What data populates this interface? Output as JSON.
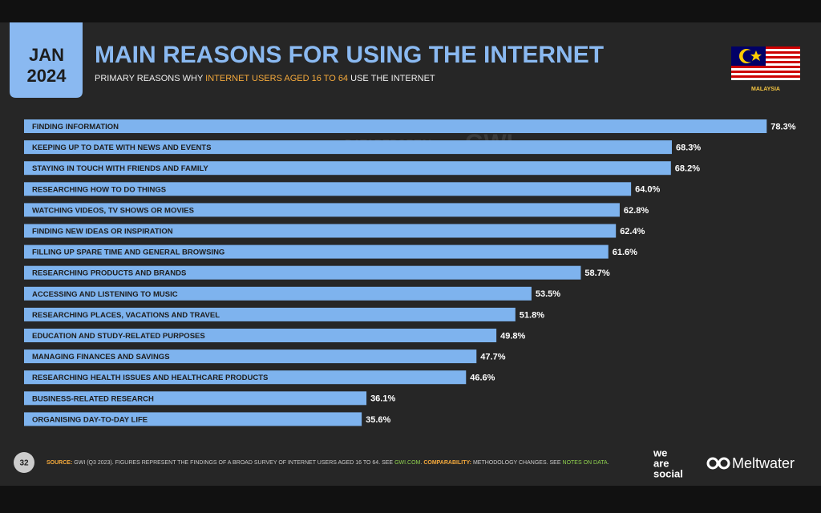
{
  "date": {
    "month": "JAN",
    "year": "2024"
  },
  "chart_data": {
    "type": "hbar",
    "title": "MAIN REASONS FOR USING THE INTERNET",
    "subtitle": {
      "before": "PRIMARY REASONS WHY",
      "highlight": "INTERNET USERS AGED 16 TO 64",
      "after": "USE THE INTERNET"
    },
    "categories": [
      "FINDING INFORMATION",
      "KEEPING UP TO DATE WITH NEWS AND EVENTS",
      "STAYING IN TOUCH WITH FRIENDS AND FAMILY",
      "RESEARCHING HOW TO DO THINGS",
      "WATCHING VIDEOS, TV SHOWS OR MOVIES",
      "FINDING NEW IDEAS OR INSPIRATION",
      "FILLING UP SPARE TIME AND GENERAL BROWSING",
      "RESEARCHING PRODUCTS AND BRANDS",
      "ACCESSING AND LISTENING TO MUSIC",
      "RESEARCHING PLACES, VACATIONS AND TRAVEL",
      "EDUCATION AND STUDY-RELATED PURPOSES",
      "MANAGING FINANCES AND SAVINGS",
      "RESEARCHING HEALTH ISSUES AND HEALTHCARE PRODUCTS",
      "BUSINESS-RELATED RESEARCH",
      "ORGANISING DAY-TO-DAY LIFE"
    ],
    "values": [
      78.3,
      68.3,
      68.2,
      64.0,
      62.8,
      62.4,
      61.6,
      58.7,
      53.5,
      51.8,
      49.8,
      47.7,
      46.6,
      36.1,
      35.6
    ],
    "value_labels": [
      "78.3%",
      "68.3%",
      "68.2%",
      "64.0%",
      "62.8%",
      "62.4%",
      "61.6%",
      "58.7%",
      "53.5%",
      "51.8%",
      "49.8%",
      "47.7%",
      "46.6%",
      "36.1%",
      "35.6%"
    ],
    "color": "#7eb3ee"
  },
  "country": "MALAYSIA",
  "watermark": {
    "left": "DATAREPORTAL",
    "right": "GWI."
  },
  "footer": {
    "page": "32",
    "source": [
      {
        "text": "SOURCE:",
        "style": "key"
      },
      {
        "text": "GWI (Q3 2023). FIGURES REPRESENT THE FINDINGS OF A BROAD SURVEY OF INTERNET USERS AGED 16 TO 64. SEE",
        "style": "plain"
      },
      {
        "text": "GWI.COM",
        "style": "link"
      },
      {
        "text": ".",
        "style": "plain"
      },
      {
        "text": "COMPARABILITY:",
        "style": "key"
      },
      {
        "text": "METHODOLOGY CHANGES. SEE",
        "style": "plain"
      },
      {
        "text": "NOTES ON DATA",
        "style": "link"
      },
      {
        "text": ".",
        "style": "plain"
      }
    ],
    "brand1": [
      "we",
      "are",
      "social"
    ],
    "brand2": "Meltwater"
  }
}
